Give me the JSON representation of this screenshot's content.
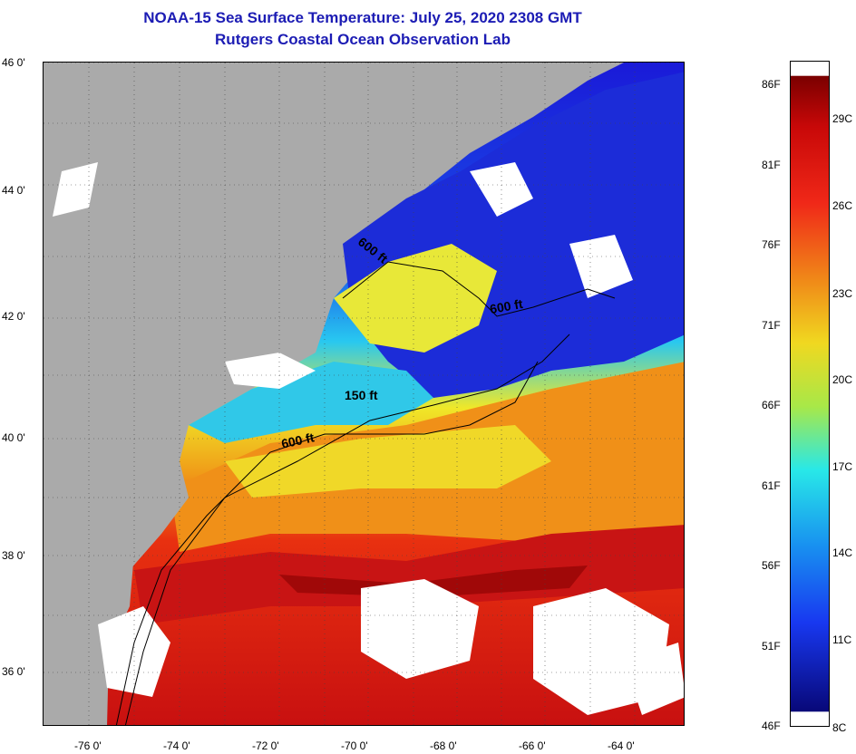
{
  "header": {
    "title": "NOAA-15 Sea Surface Temperature:  July 25, 2020 2308 GMT",
    "subtitle": "Rutgers Coastal Ocean Observation Lab"
  },
  "map": {
    "lat_labels": [
      "46 0'",
      "44 0'",
      "42 0'",
      "40 0'",
      "38 0'",
      "36 0'"
    ],
    "lon_labels": [
      "-76 0'",
      "-74 0'",
      "-72 0'",
      "-70 0'",
      "-68 0'",
      "-66 0'",
      "-64 0'"
    ],
    "contour_labels": [
      "600 ft",
      "150 ft",
      "600 ft",
      "600 ft"
    ],
    "colors": {
      "land": "#aaaaaa",
      "cloud": "#ffffff",
      "cold": "#1a1ad8",
      "cool": "#28c8f0",
      "mid": "#f0f028",
      "warm": "#f07818",
      "hot": "#d81414",
      "hottest": "#a80a0a"
    }
  },
  "colorbar": {
    "f_labels": [
      "86F",
      "81F",
      "76F",
      "71F",
      "66F",
      "61F",
      "56F",
      "51F",
      "46F"
    ],
    "c_labels": [
      "29C",
      "26C",
      "23C",
      "20C",
      "17C",
      "14C",
      "11C",
      "8C"
    ]
  }
}
